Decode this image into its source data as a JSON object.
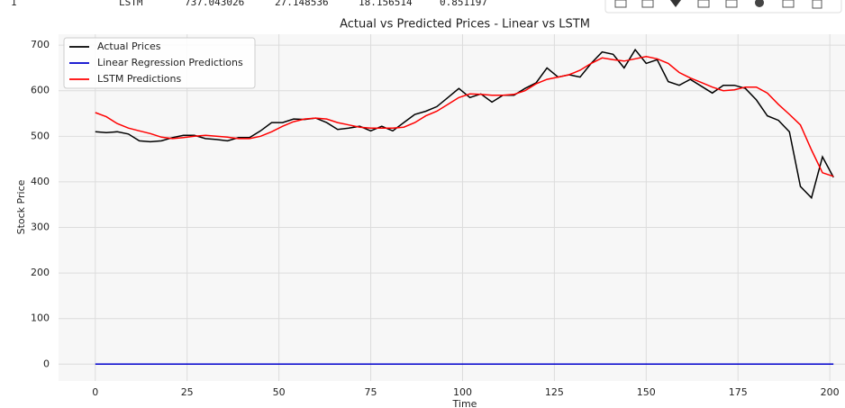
{
  "table_row": [
    "1",
    "LSTM",
    "737.043026",
    "27.148536",
    "18.156514",
    "0.851197"
  ],
  "chart_data": {
    "type": "line",
    "title": "Actual vs Predicted Prices - Linear vs LSTM",
    "x_label": "Time",
    "y_label": "Stock Price",
    "x": [
      0,
      3,
      6,
      9,
      12,
      15,
      18,
      21,
      24,
      27,
      30,
      33,
      36,
      39,
      42,
      45,
      48,
      51,
      54,
      57,
      60,
      63,
      66,
      69,
      72,
      75,
      78,
      81,
      84,
      87,
      90,
      93,
      96,
      99,
      102,
      105,
      108,
      111,
      114,
      117,
      120,
      123,
      126,
      129,
      132,
      135,
      138,
      141,
      144,
      147,
      150,
      153,
      156,
      159,
      162,
      165,
      168,
      171,
      174,
      177,
      180,
      183,
      186,
      189,
      192,
      195,
      198,
      201
    ],
    "series": [
      {
        "name": "Actual Prices",
        "color": "#000000",
        "values": [
          510,
          508,
          510,
          505,
          490,
          488,
          490,
          497,
          502,
          502,
          495,
          493,
          490,
          497,
          497,
          512,
          530,
          530,
          538,
          537,
          540,
          530,
          515,
          518,
          522,
          512,
          522,
          512,
          530,
          548,
          555,
          565,
          585,
          605,
          585,
          593,
          575,
          590,
          590,
          605,
          617,
          650,
          630,
          635,
          630,
          660,
          685,
          680,
          650,
          690,
          660,
          668,
          620,
          612,
          625,
          610,
          595,
          612,
          612,
          605,
          580,
          545,
          535,
          510,
          390,
          365,
          455,
          410
        ]
      },
      {
        "name": "Linear Regression Predictions",
        "color": "#0000cc",
        "values": [
          0,
          0,
          0,
          0,
          0,
          0,
          0,
          0,
          0,
          0,
          0,
          0,
          0,
          0,
          0,
          0,
          0,
          0,
          0,
          0,
          0,
          0,
          0,
          0,
          0,
          0,
          0,
          0,
          0,
          0,
          0,
          0,
          0,
          0,
          0,
          0,
          0,
          0,
          0,
          0,
          0,
          0,
          0,
          0,
          0,
          0,
          0,
          0,
          0,
          0,
          0,
          0,
          0,
          0,
          0,
          0,
          0,
          0,
          0,
          0,
          0,
          0,
          0,
          0,
          0,
          0,
          0,
          0
        ]
      },
      {
        "name": "LSTM Predictions",
        "color": "#ff0000",
        "values": [
          552,
          543,
          528,
          518,
          512,
          506,
          498,
          495,
          497,
          500,
          502,
          500,
          498,
          495,
          495,
          500,
          510,
          522,
          532,
          538,
          540,
          538,
          530,
          525,
          520,
          518,
          518,
          518,
          520,
          530,
          545,
          555,
          570,
          585,
          593,
          592,
          590,
          590,
          592,
          600,
          615,
          625,
          630,
          635,
          645,
          660,
          672,
          668,
          665,
          670,
          675,
          670,
          660,
          640,
          628,
          618,
          608,
          600,
          602,
          608,
          608,
          595,
          570,
          548,
          525,
          470,
          420,
          412
        ]
      }
    ],
    "xlim": [
      -10,
      211
    ],
    "ylim": [
      -37,
      724
    ],
    "xticks": [
      0,
      25,
      50,
      75,
      100,
      125,
      150,
      175,
      200
    ],
    "yticks": [
      0,
      100,
      200,
      300,
      400,
      500,
      600,
      700
    ],
    "grid": true,
    "legend": "upper left"
  }
}
